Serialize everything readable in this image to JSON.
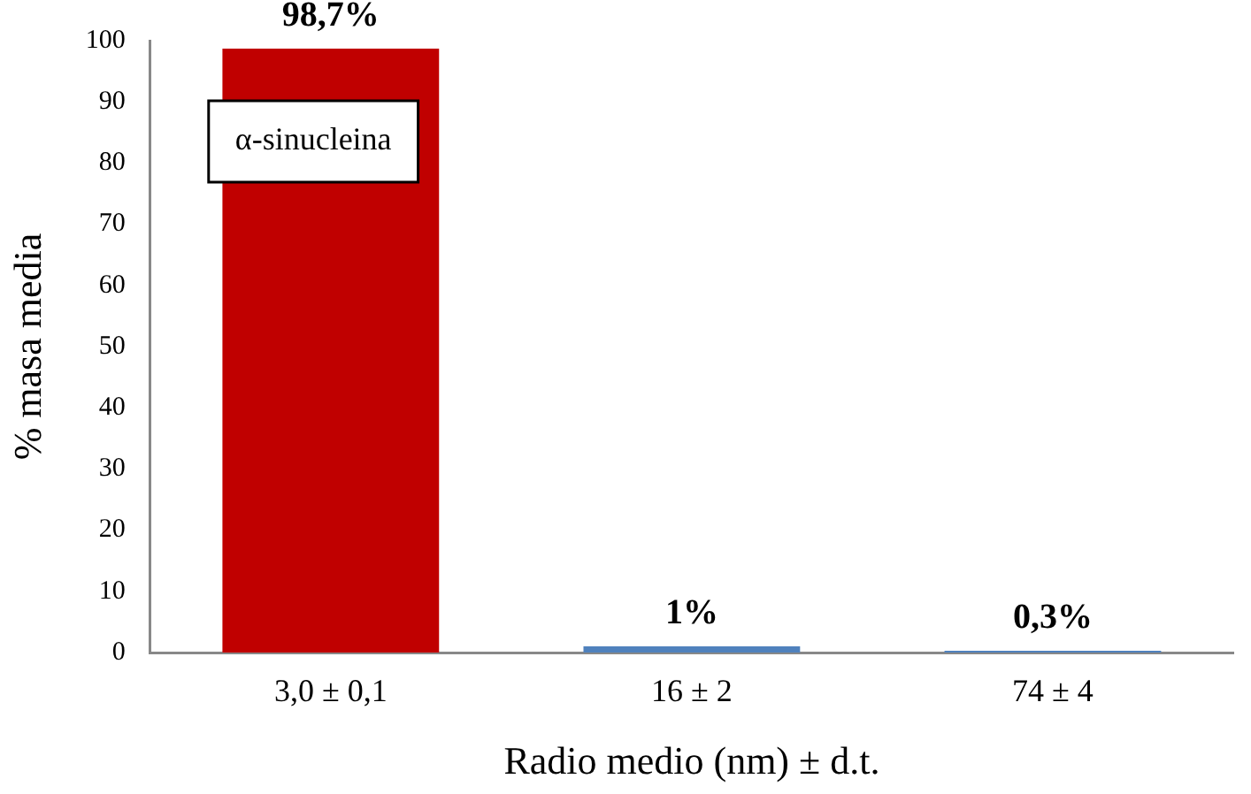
{
  "chart_data": {
    "type": "bar",
    "xlabel": "Radio medio (nm) ± d.t.",
    "ylabel": "% masa media",
    "categories": [
      "3,0 ± 0,1",
      "16 ± 2",
      "74 ± 4"
    ],
    "values": [
      98.7,
      1,
      0.3
    ],
    "colors": [
      "#c00000",
      "#4f81bd",
      "#4f81bd"
    ],
    "value_labels": [
      "98,7%",
      "1%",
      "0,3%"
    ],
    "annotations": [
      "α-sinucleina"
    ],
    "ylim": [
      0,
      100
    ],
    "yticks": [
      0,
      10,
      20,
      30,
      40,
      50,
      60,
      70,
      80,
      90,
      100
    ],
    "grid": false,
    "legend": false
  }
}
